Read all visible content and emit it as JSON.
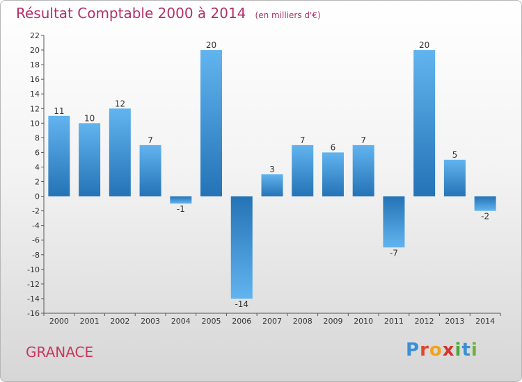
{
  "header": {
    "title": "Résultat Comptable 2000 à 2014",
    "subtitle": "(en milliers d'€)"
  },
  "footer": {
    "commune": "GRANACE",
    "logo_letters": [
      "P",
      "r",
      "o",
      "x",
      "i",
      "t",
      "i"
    ],
    "logo_colors": [
      "#3a8fd6",
      "#e0462a",
      "#f2a31b",
      "#d6322f",
      "#4aa93a",
      "#3a8fd6",
      "#6bb33a"
    ]
  },
  "colors": {
    "bar_light": "#62b4ef",
    "bar_dark": "#2473b6",
    "axis": "#555555",
    "title": "#b0306a"
  },
  "chart_data": {
    "type": "bar",
    "title": "Résultat Comptable 2000 à 2014",
    "subtitle": "(en milliers d'€)",
    "categories": [
      "2000",
      "2001",
      "2002",
      "2003",
      "2004",
      "2005",
      "2006",
      "2007",
      "2008",
      "2009",
      "2010",
      "2011",
      "2012",
      "2013",
      "2014"
    ],
    "values": [
      11,
      10,
      12,
      7,
      -1,
      20,
      -14,
      3,
      7,
      6,
      7,
      -7,
      20,
      5,
      -2
    ],
    "ylim": [
      -16,
      22
    ],
    "yticks": [
      -16,
      -14,
      -12,
      -10,
      -8,
      -6,
      -4,
      -2,
      0,
      2,
      4,
      6,
      8,
      10,
      12,
      14,
      16,
      18,
      20,
      22
    ],
    "grid": false,
    "data_labels": true
  }
}
